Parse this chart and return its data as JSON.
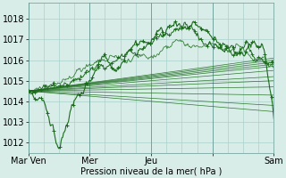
{
  "title": "",
  "xlabel": "Pression niveau de la mer( hPa )",
  "background_color": "#d8ede8",
  "plot_bg_color": "#d8ede8",
  "grid_color": "#aacfca",
  "line_color": "#1a6b1a",
  "yticks": [
    1012,
    1013,
    1014,
    1015,
    1016,
    1017,
    1018
  ],
  "ylim": [
    1011.5,
    1018.8
  ],
  "xlim": [
    0,
    96
  ],
  "xtick_positions": [
    0,
    24,
    48,
    72,
    96
  ],
  "xtick_labels": [
    "Mar Ven",
    "Mer",
    "Jeu",
    "",
    "Sam"
  ],
  "font_size": 7,
  "xlabel_fontsize": 7,
  "straight_lines": [
    [
      1014.5,
      1016.1
    ],
    [
      1014.5,
      1016.0
    ],
    [
      1014.5,
      1015.9
    ],
    [
      1014.5,
      1015.8
    ],
    [
      1014.5,
      1015.7
    ],
    [
      1014.5,
      1015.5
    ],
    [
      1014.5,
      1015.2
    ],
    [
      1014.5,
      1015.0
    ],
    [
      1014.5,
      1014.7
    ],
    [
      1014.5,
      1014.3
    ],
    [
      1014.5,
      1013.8
    ],
    [
      1014.5,
      1013.5
    ]
  ],
  "ctrl_knots_x": [
    0,
    5,
    12,
    18,
    24,
    30,
    36,
    42,
    48,
    54,
    58,
    62,
    65,
    68,
    72,
    76,
    80,
    84,
    88,
    92,
    96
  ],
  "ctrl_knots_y": [
    1014.5,
    1014.3,
    1012.0,
    1013.8,
    1015.0,
    1016.2,
    1015.3,
    1016.8,
    1017.2,
    1017.7,
    1018.1,
    1017.6,
    1017.9,
    1017.5,
    1017.0,
    1016.6,
    1016.5,
    1016.3,
    1016.8,
    1016.6,
    1013.2
  ],
  "ctrl2_knots_x": [
    0,
    8,
    16,
    24,
    32,
    40,
    48,
    54,
    58,
    62,
    66,
    70,
    74,
    78,
    82,
    86,
    90,
    96
  ],
  "ctrl2_knots_y": [
    1014.5,
    1014.6,
    1015.0,
    1015.5,
    1015.8,
    1016.3,
    1016.7,
    1017.0,
    1017.3,
    1017.5,
    1017.2,
    1016.8,
    1016.5,
    1016.5,
    1016.3,
    1016.5,
    1016.2,
    1015.8
  ]
}
